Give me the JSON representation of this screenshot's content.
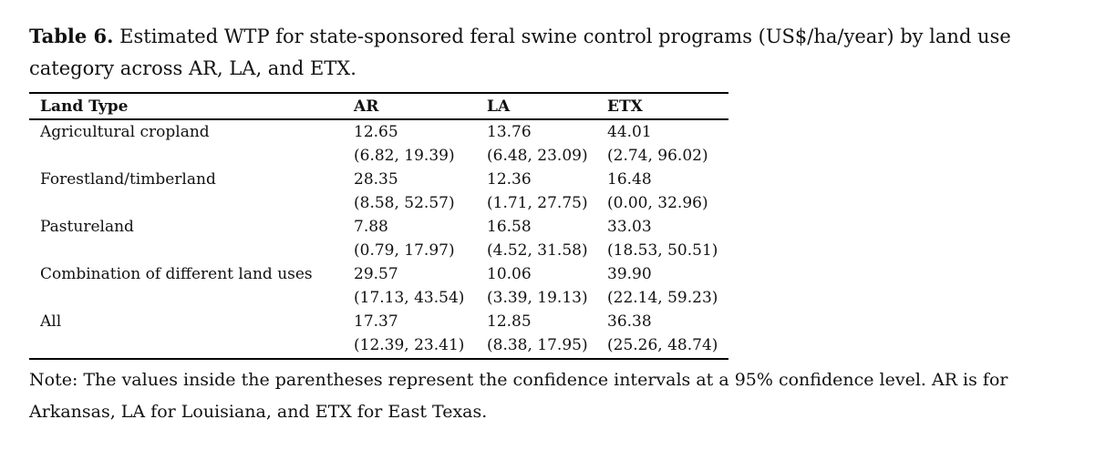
{
  "caption": {
    "label": "Table 6.",
    "text": "Estimated WTP for state-sponsored feral swine control programs (US$/ha/year) by land use category across AR, LA, and ETX."
  },
  "table": {
    "header": [
      "Land Type",
      "AR",
      "LA",
      "ETX"
    ],
    "rows": [
      {
        "label": "Agricultural cropland",
        "cells": [
          {
            "estimate": "12.65",
            "ci": "(6.82, 19.39)"
          },
          {
            "estimate": "13.76",
            "ci": "(6.48, 23.09)"
          },
          {
            "estimate": "44.01",
            "ci": "(2.74, 96.02)"
          }
        ]
      },
      {
        "label": "Forestland/timberland",
        "cells": [
          {
            "estimate": "28.35",
            "ci": "(8.58, 52.57)"
          },
          {
            "estimate": "12.36",
            "ci": "(1.71, 27.75)"
          },
          {
            "estimate": "16.48",
            "ci": "(0.00, 32.96)"
          }
        ]
      },
      {
        "label": "Pastureland",
        "cells": [
          {
            "estimate": "7.88",
            "ci": "(0.79, 17.97)"
          },
          {
            "estimate": "16.58",
            "ci": "(4.52, 31.58)"
          },
          {
            "estimate": "33.03",
            "ci": "(18.53, 50.51)"
          }
        ]
      },
      {
        "label": "Combination of different land uses",
        "cells": [
          {
            "estimate": "29.57",
            "ci": "(17.13, 43.54)"
          },
          {
            "estimate": "10.06",
            "ci": "(3.39, 19.13)"
          },
          {
            "estimate": "39.90",
            "ci": "(22.14, 59.23)"
          }
        ]
      },
      {
        "label": "All",
        "cells": [
          {
            "estimate": "17.37",
            "ci": "(12.39, 23.41)"
          },
          {
            "estimate": "12.85",
            "ci": "(8.38, 17.95)"
          },
          {
            "estimate": "36.38",
            "ci": "(25.26, 48.74)"
          }
        ]
      }
    ]
  },
  "note": "Note: The values inside the parentheses represent the confidence intervals at a 95% confidence level. AR is for Arkansas, LA for Louisiana, and ETX for East Texas."
}
